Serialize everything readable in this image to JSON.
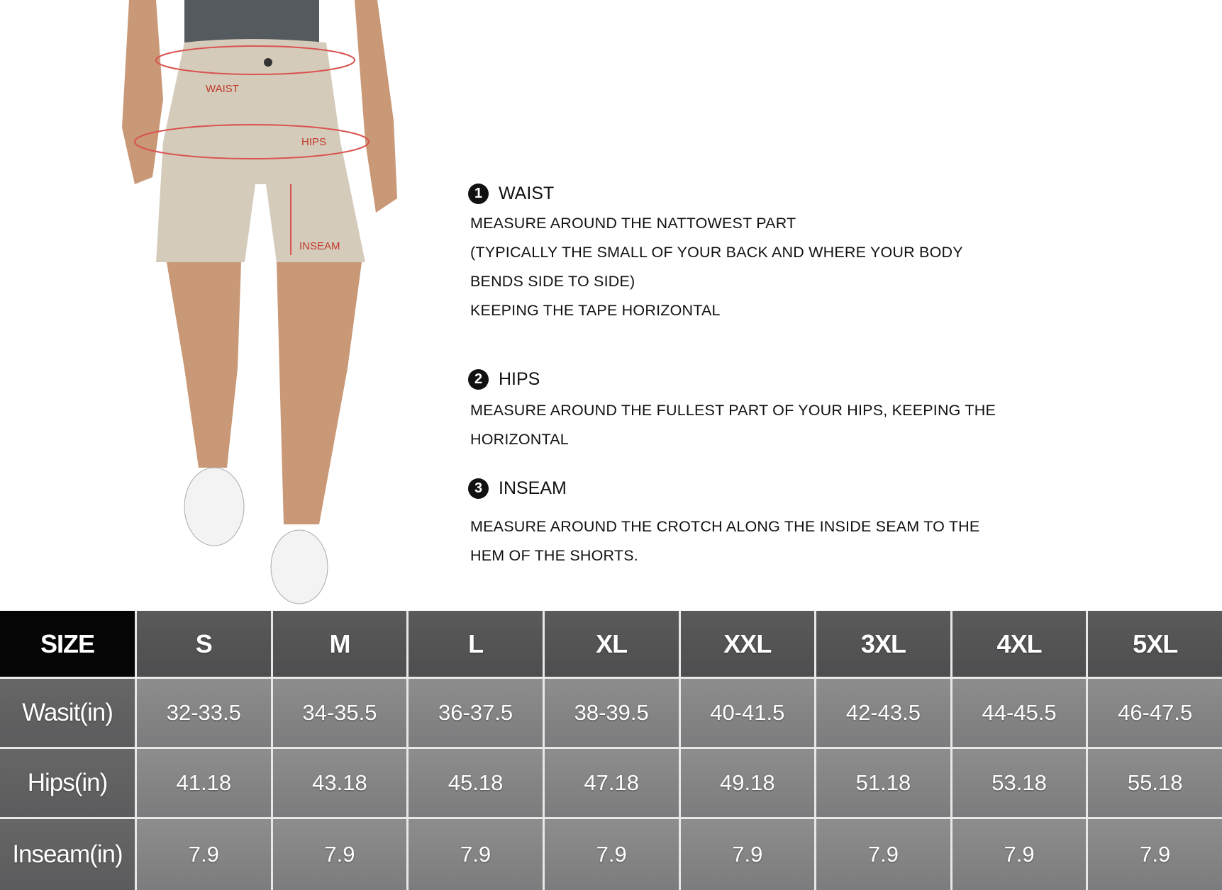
{
  "figure": {
    "labels": {
      "waist": "WAIST",
      "hips": "HIPS",
      "inseam": "INSEAM"
    },
    "colors": {
      "shorts": "#d5cbbb",
      "measure_line": "#d9534f",
      "skin": "#c99877",
      "shirt": "#555a5e"
    }
  },
  "guide": [
    {
      "num": "1",
      "title": "WAIST",
      "lines": [
        "MEASURE AROUND THE NATTOWEST PART",
        "(TYPICALLY THE SMALL OF YOUR BACK AND WHERE YOUR BODY",
        "BENDS SIDE TO SIDE)",
        "KEEPING THE TAPE HORIZONTAL"
      ]
    },
    {
      "num": "2",
      "title": "HIPS",
      "lines": [
        "MEASURE AROUND THE FULLEST PART OF YOUR HIPS, KEEPING THE",
        "HORIZONTAL"
      ]
    },
    {
      "num": "3",
      "title": "INSEAM",
      "lines": [
        "MEASURE AROUND THE CROTCH ALONG THE INSIDE SEAM TO THE",
        "HEM OF THE SHORTS."
      ]
    }
  ],
  "table": {
    "header": "SIZE",
    "sizes": [
      "S",
      "M",
      "L",
      "XL",
      "XXL",
      "3XL",
      "4XL",
      "5XL"
    ],
    "rows": [
      {
        "label": "Wasit(in)",
        "values": [
          "32-33.5",
          "34-35.5",
          "36-37.5",
          "38-39.5",
          "40-41.5",
          "42-43.5",
          "44-45.5",
          "46-47.5"
        ]
      },
      {
        "label": "Hips(in)",
        "values": [
          "41.18",
          "43.18",
          "45.18",
          "47.18",
          "49.18",
          "51.18",
          "53.18",
          "55.18"
        ]
      },
      {
        "label": "Inseam(in)",
        "values": [
          "7.9",
          "7.9",
          "7.9",
          "7.9",
          "7.9",
          "7.9",
          "7.9",
          "7.9"
        ]
      }
    ]
  }
}
